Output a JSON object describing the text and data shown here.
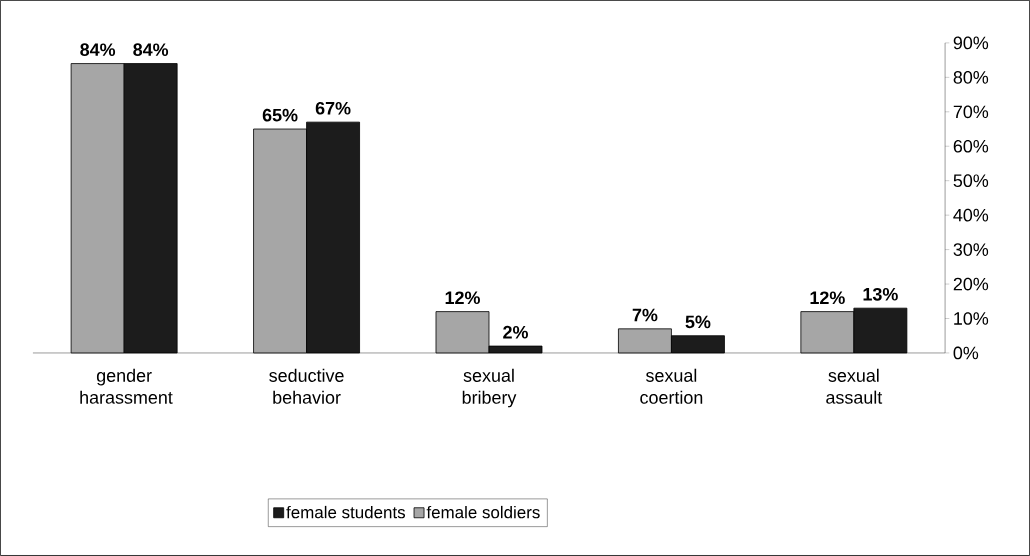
{
  "chart_data": {
    "type": "bar",
    "categories": [
      "gender harassment",
      "seductive behavior",
      "sexual bribery",
      "sexual coertion",
      "sexual assault"
    ],
    "series": [
      {
        "name": "female soldiers",
        "color": "#a6a6a6",
        "values": [
          84,
          65,
          12,
          7,
          12
        ],
        "value_labels": [
          "84%",
          "65%",
          "12%",
          "7%",
          "12%"
        ]
      },
      {
        "name": "female students",
        "color": "#1c1c1c",
        "values": [
          84,
          67,
          2,
          5,
          13
        ],
        "value_labels": [
          "84%",
          "67%",
          "2%",
          "5%",
          "13%"
        ]
      }
    ],
    "ylim": [
      0,
      90
    ],
    "yticks": [
      {
        "value": 0,
        "label": "0%"
      },
      {
        "value": 10,
        "label": "10%"
      },
      {
        "value": 20,
        "label": "20%"
      },
      {
        "value": 30,
        "label": "30%"
      },
      {
        "value": 40,
        "label": "40%"
      },
      {
        "value": 50,
        "label": "50%"
      },
      {
        "value": 60,
        "label": "60%"
      },
      {
        "value": 70,
        "label": "70%"
      },
      {
        "value": 80,
        "label": "80%"
      },
      {
        "value": 90,
        "label": "90%"
      }
    ],
    "grid": false,
    "legend": "bottom"
  }
}
